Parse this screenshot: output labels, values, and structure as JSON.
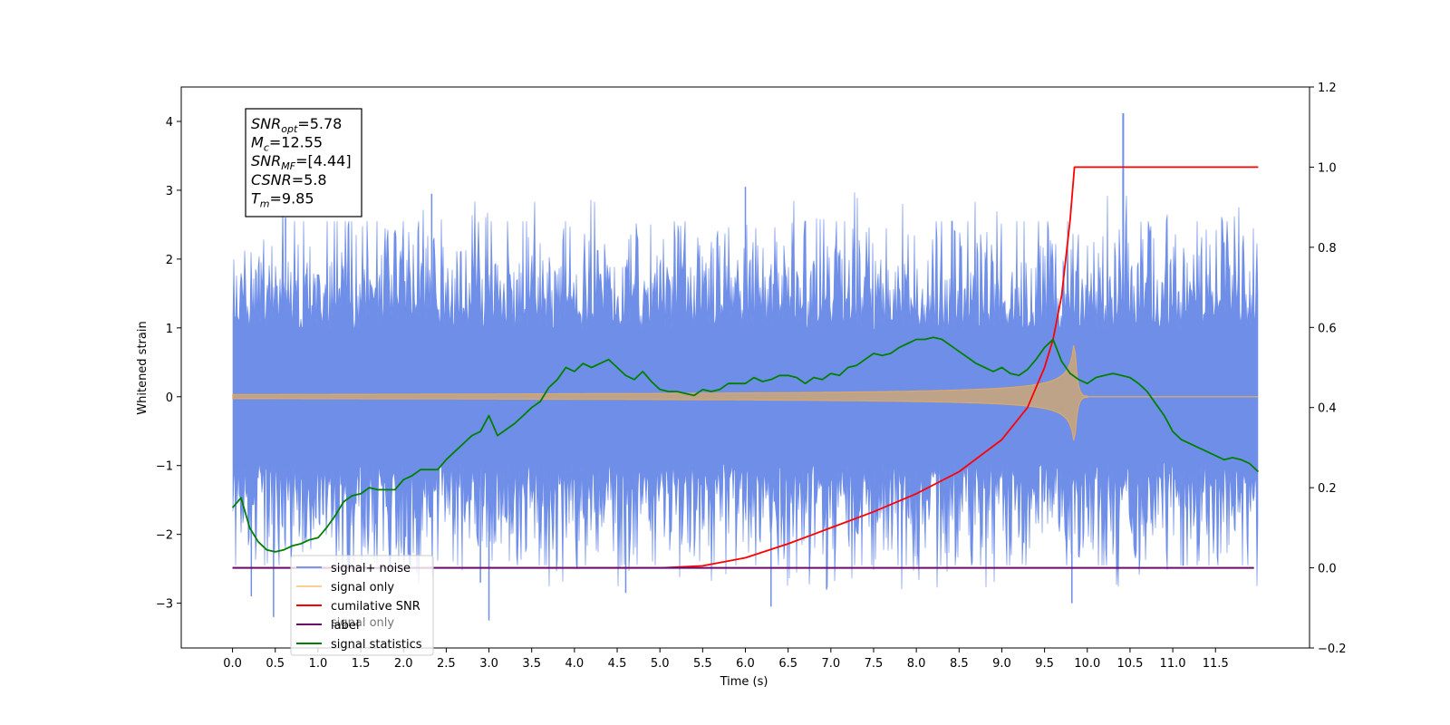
{
  "chart_data": {
    "type": "line",
    "xlabel": "Time (s)",
    "ylabel": "Whitened strain",
    "xlim": [
      -0.6,
      12.6
    ],
    "ylim": [
      -3.65,
      4.5
    ],
    "y2lim": [
      -0.2,
      1.2
    ],
    "x_ticks": [
      0.0,
      0.5,
      1.0,
      1.5,
      2.0,
      2.5,
      3.0,
      3.5,
      4.0,
      4.5,
      5.0,
      5.5,
      6.0,
      6.5,
      7.0,
      7.5,
      8.0,
      8.5,
      9.0,
      9.5,
      10.0,
      10.5,
      11.0,
      11.5
    ],
    "y_ticks": [
      -3,
      -2,
      -1,
      0,
      1,
      2,
      3,
      4
    ],
    "y2_ticks": [
      -0.2,
      0.0,
      0.2,
      0.4,
      0.6,
      0.8,
      1.0,
      1.2
    ],
    "colors": {
      "signal_noise": "#6f8ee8",
      "signal_only": "#f5b04a",
      "cumulative_snr": "#ff0000",
      "label": "#6a0d6a",
      "signal_statistics": "#008000"
    },
    "series": [
      {
        "name": "signal+ noise",
        "axis": "left",
        "style": "noise",
        "x_range": [
          0.0,
          12.0
        ],
        "envelope_upper": 2.5,
        "envelope_lower": -2.3,
        "peak": {
          "x": 10.42,
          "y": 4.12
        }
      },
      {
        "name": "signal only",
        "axis": "left",
        "style": "chirp",
        "x_range": [
          0.0,
          10.0
        ],
        "merger_time": 9.85,
        "peak_amplitude": 0.9
      },
      {
        "name": "cumilative SNR",
        "axis": "right",
        "x": [
          0.0,
          5.0,
          5.5,
          6.0,
          6.5,
          7.0,
          7.5,
          8.0,
          8.5,
          9.0,
          9.3,
          9.5,
          9.6,
          9.7,
          9.8,
          9.85,
          12.0
        ],
        "values": [
          0.0,
          0.0,
          0.005,
          0.025,
          0.06,
          0.1,
          0.14,
          0.185,
          0.24,
          0.32,
          0.4,
          0.5,
          0.57,
          0.68,
          0.87,
          1.0,
          1.0
        ]
      },
      {
        "name": "label",
        "axis": "right",
        "x": [
          0.0,
          11.95
        ],
        "values": [
          0.0,
          0.0
        ]
      },
      {
        "name": "signal statistics",
        "axis": "right",
        "x": [
          0.0,
          0.1,
          0.2,
          0.3,
          0.4,
          0.5,
          0.6,
          0.7,
          0.8,
          0.9,
          1.0,
          1.1,
          1.2,
          1.3,
          1.4,
          1.5,
          1.6,
          1.7,
          1.8,
          1.9,
          2.0,
          2.1,
          2.2,
          2.3,
          2.4,
          2.5,
          2.6,
          2.7,
          2.8,
          2.9,
          3.0,
          3.1,
          3.2,
          3.3,
          3.4,
          3.5,
          3.6,
          3.7,
          3.8,
          3.9,
          4.0,
          4.1,
          4.2,
          4.3,
          4.4,
          4.5,
          4.6,
          4.7,
          4.8,
          4.9,
          5.0,
          5.1,
          5.2,
          5.3,
          5.4,
          5.5,
          5.6,
          5.7,
          5.8,
          5.9,
          6.0,
          6.1,
          6.2,
          6.3,
          6.4,
          6.5,
          6.6,
          6.7,
          6.8,
          6.9,
          7.0,
          7.1,
          7.2,
          7.3,
          7.4,
          7.5,
          7.6,
          7.7,
          7.8,
          7.9,
          8.0,
          8.1,
          8.2,
          8.3,
          8.4,
          8.5,
          8.6,
          8.7,
          8.8,
          8.9,
          9.0,
          9.1,
          9.2,
          9.3,
          9.4,
          9.5,
          9.6,
          9.7,
          9.8,
          9.9,
          10.0,
          10.1,
          10.2,
          10.3,
          10.4,
          10.5,
          10.6,
          10.7,
          10.8,
          10.9,
          11.0,
          11.1,
          11.2,
          11.3,
          11.4,
          11.5,
          11.6,
          11.7,
          11.8,
          11.9,
          12.0
        ],
        "values": [
          0.15,
          0.175,
          0.1,
          0.065,
          0.045,
          0.04,
          0.045,
          0.055,
          0.06,
          0.07,
          0.075,
          0.1,
          0.13,
          0.165,
          0.18,
          0.185,
          0.2,
          0.195,
          0.195,
          0.195,
          0.22,
          0.23,
          0.245,
          0.245,
          0.245,
          0.27,
          0.29,
          0.31,
          0.33,
          0.34,
          0.38,
          0.33,
          0.345,
          0.36,
          0.38,
          0.4,
          0.415,
          0.45,
          0.47,
          0.5,
          0.49,
          0.51,
          0.5,
          0.51,
          0.52,
          0.5,
          0.48,
          0.47,
          0.49,
          0.465,
          0.445,
          0.44,
          0.44,
          0.435,
          0.43,
          0.445,
          0.44,
          0.445,
          0.46,
          0.46,
          0.46,
          0.475,
          0.465,
          0.47,
          0.48,
          0.48,
          0.475,
          0.46,
          0.475,
          0.47,
          0.485,
          0.48,
          0.5,
          0.505,
          0.52,
          0.535,
          0.53,
          0.535,
          0.55,
          0.56,
          0.57,
          0.57,
          0.575,
          0.57,
          0.555,
          0.54,
          0.525,
          0.51,
          0.5,
          0.49,
          0.5,
          0.485,
          0.48,
          0.495,
          0.52,
          0.55,
          0.57,
          0.515,
          0.485,
          0.47,
          0.46,
          0.475,
          0.48,
          0.485,
          0.48,
          0.475,
          0.46,
          0.44,
          0.41,
          0.38,
          0.34,
          0.32,
          0.31,
          0.3,
          0.29,
          0.28,
          0.27,
          0.275,
          0.27,
          0.26,
          0.24
        ]
      }
    ],
    "legend": {
      "placement": "lower-left",
      "entries": [
        "signal+ noise",
        "signal only",
        "cumilative SNR",
        "label",
        "signal statistics"
      ],
      "hidden_text": "signal only"
    },
    "annotation": {
      "lines": [
        {
          "base": "SNR",
          "sub": "opt",
          "value": "=5.78"
        },
        {
          "base": "M",
          "sub": "c",
          "value": "=12.55"
        },
        {
          "base": "SNR",
          "sub": "MF",
          "value": "=[4.44]"
        },
        {
          "base": "CSNR",
          "sub": "",
          "value": "=5.8"
        },
        {
          "base": "T",
          "sub": "m",
          "value": "=9.85"
        }
      ]
    },
    "grid": false
  }
}
